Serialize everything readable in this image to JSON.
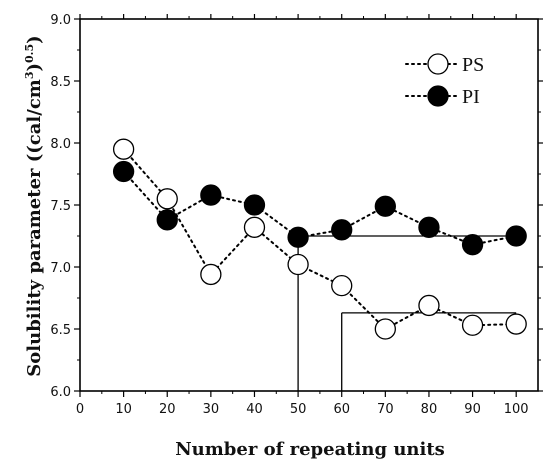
{
  "chart_data": {
    "type": "scatter",
    "xlabel": "Number of repeating units",
    "ylabel_main": "Solubility parameter ((cal/cm",
    "ylabel_sup1": "3",
    "ylabel_mid": ")",
    "ylabel_sup2": "0.5",
    "ylabel_end": ")",
    "xlim": [
      0,
      105
    ],
    "ylim": [
      6.0,
      9.0
    ],
    "x_ticks": [
      "0",
      "10",
      "20",
      "30",
      "40",
      "50",
      "60",
      "70",
      "80",
      "90",
      "100"
    ],
    "y_ticks": [
      "6.0",
      "6.5",
      "7.0",
      "7.5",
      "8.0",
      "8.5",
      "9.0"
    ],
    "legend_position": "top-right",
    "series": [
      {
        "name": "PS",
        "marker": "open-circle",
        "line_style": "dotted",
        "color": "#000000",
        "x": [
          10,
          20,
          30,
          40,
          50,
          60,
          70,
          80,
          90,
          100
        ],
        "y": [
          7.95,
          7.55,
          6.94,
          7.32,
          7.02,
          6.85,
          6.5,
          6.69,
          6.53,
          6.54
        ]
      },
      {
        "name": "PI",
        "marker": "filled-circle",
        "line_style": "dotted",
        "color": "#000000",
        "x": [
          10,
          20,
          30,
          40,
          50,
          60,
          70,
          80,
          90,
          100
        ],
        "y": [
          7.77,
          7.38,
          7.58,
          7.5,
          7.24,
          7.3,
          7.49,
          7.32,
          7.18,
          7.25
        ]
      }
    ],
    "reference_lines": [
      {
        "name": "PI-plateau",
        "x_start": 50,
        "x_end": 100,
        "y": 7.25
      },
      {
        "name": "PS-plateau",
        "x_start": 60,
        "x_end": 100,
        "y": 6.63
      }
    ]
  }
}
